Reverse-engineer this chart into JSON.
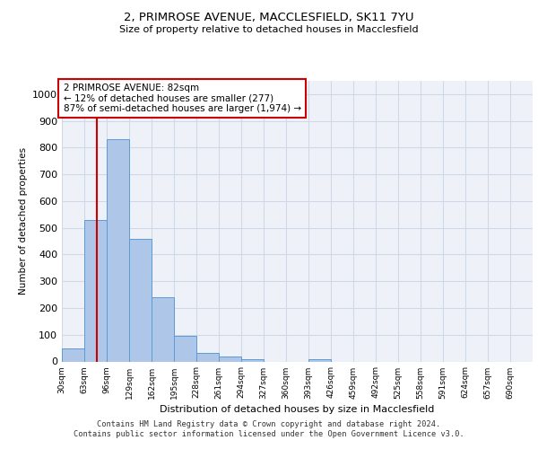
{
  "title_line1": "2, PRIMROSE AVENUE, MACCLESFIELD, SK11 7YU",
  "title_line2": "Size of property relative to detached houses in Macclesfield",
  "xlabel": "Distribution of detached houses by size in Macclesfield",
  "ylabel": "Number of detached properties",
  "footer_line1": "Contains HM Land Registry data © Crown copyright and database right 2024.",
  "footer_line2": "Contains public sector information licensed under the Open Government Licence v3.0.",
  "bin_labels": [
    "30sqm",
    "63sqm",
    "96sqm",
    "129sqm",
    "162sqm",
    "195sqm",
    "228sqm",
    "261sqm",
    "294sqm",
    "327sqm",
    "360sqm",
    "393sqm",
    "426sqm",
    "459sqm",
    "492sqm",
    "525sqm",
    "558sqm",
    "591sqm",
    "624sqm",
    "657sqm",
    "690sqm"
  ],
  "bin_edges": [
    30,
    63,
    96,
    129,
    162,
    195,
    228,
    261,
    294,
    327,
    360,
    393,
    426,
    459,
    492,
    525,
    558,
    591,
    624,
    657,
    690
  ],
  "bar_values": [
    50,
    530,
    830,
    460,
    240,
    97,
    33,
    20,
    10,
    0,
    0,
    10,
    0,
    0,
    0,
    0,
    0,
    0,
    0,
    0
  ],
  "bar_color": "#aec6e8",
  "bar_edge_color": "#5b9bd5",
  "property_size": 82,
  "property_line_color": "#cc0000",
  "ylim": [
    0,
    1050
  ],
  "yticks": [
    0,
    100,
    200,
    300,
    400,
    500,
    600,
    700,
    800,
    900,
    1000
  ],
  "annotation_text": "2 PRIMROSE AVENUE: 82sqm\n← 12% of detached houses are smaller (277)\n87% of semi-detached houses are larger (1,974) →",
  "annotation_box_color": "#ffffff",
  "annotation_box_edge": "#cc0000",
  "grid_color": "#d0d8e8",
  "background_color": "#eef2f8"
}
